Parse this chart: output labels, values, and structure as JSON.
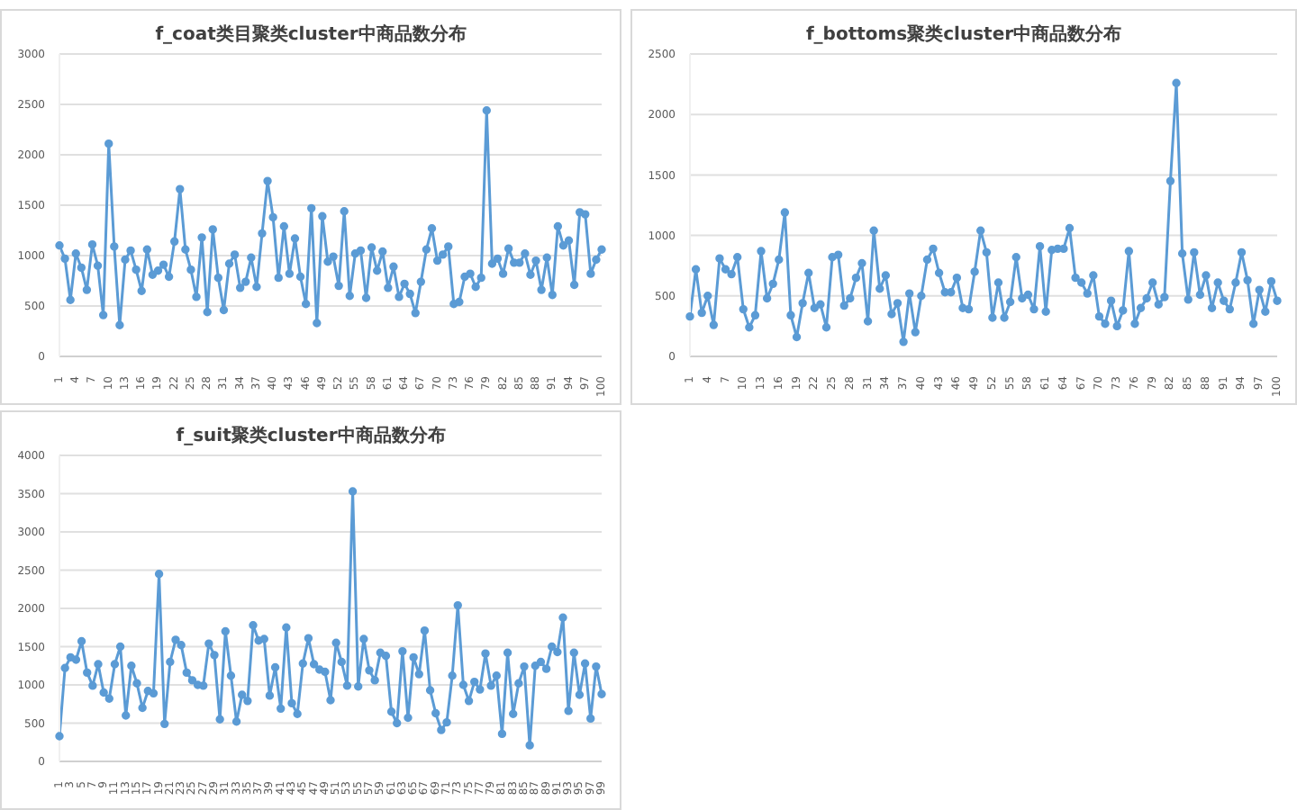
{
  "chart_data": [
    {
      "type": "line",
      "title": "f_coat类目聚类cluster中商品数分布",
      "categories": [
        "1",
        null,
        null,
        "4",
        null,
        null,
        "7",
        null,
        null,
        "10",
        null,
        null,
        "13",
        null,
        null,
        "16",
        null,
        null,
        "19",
        null,
        null,
        "22",
        null,
        null,
        "25",
        null,
        null,
        "28",
        null,
        null,
        "31",
        null,
        null,
        "34",
        null,
        null,
        "37",
        null,
        null,
        "40",
        null,
        null,
        "43",
        null,
        null,
        "46",
        null,
        null,
        "49",
        null,
        null,
        "52",
        null,
        null,
        "55",
        null,
        null,
        "58",
        null,
        null,
        "61",
        null,
        null,
        "64",
        null,
        null,
        "67",
        null,
        null,
        "70",
        null,
        null,
        "73",
        null,
        null,
        "76",
        null,
        null,
        "79",
        null,
        null,
        "82",
        null,
        null,
        "85",
        null,
        null,
        "88",
        null,
        null,
        "91",
        null,
        null,
        "94",
        null,
        null,
        "97",
        null,
        null,
        "100"
      ],
      "series": [
        {
          "color": "#5b9bd5",
          "values": [
            1100,
            970,
            560,
            1020,
            880,
            660,
            1110,
            900,
            410,
            2110,
            1090,
            310,
            960,
            1050,
            860,
            650,
            1060,
            810,
            850,
            910,
            790,
            1140,
            1660,
            1060,
            860,
            590,
            1180,
            440,
            1260,
            780,
            460,
            920,
            1010,
            680,
            740,
            980,
            690,
            1220,
            1740,
            1380,
            780,
            1290,
            820,
            1170,
            790,
            520,
            1470,
            330,
            1390,
            940,
            990,
            700,
            1440,
            600,
            1020,
            1050,
            580,
            1080,
            850,
            1040,
            680,
            890,
            590,
            720,
            620,
            430,
            740,
            1060,
            1270,
            950,
            1010,
            1090,
            520,
            540,
            790,
            820,
            690,
            780,
            2440,
            920,
            970,
            820,
            1070,
            930,
            930,
            1020,
            810,
            950,
            660,
            980,
            610,
            1290,
            1100,
            1150,
            710,
            1430,
            1410,
            820,
            960,
            1060
          ]
        }
      ],
      "ylim": [
        0,
        3000
      ],
      "yticks": [
        0,
        500,
        1000,
        1500,
        2000,
        2500,
        3000
      ],
      "grid": "y",
      "marker": "circle"
    },
    {
      "type": "line",
      "title": "f_bottoms聚类cluster中商品数分布",
      "categories": [
        "1",
        null,
        null,
        "4",
        null,
        null,
        "7",
        null,
        null,
        "10",
        null,
        null,
        "13",
        null,
        null,
        "16",
        null,
        null,
        "19",
        null,
        null,
        "22",
        null,
        null,
        "25",
        null,
        null,
        "28",
        null,
        null,
        "31",
        null,
        null,
        "34",
        null,
        null,
        "37",
        null,
        null,
        "40",
        null,
        null,
        "43",
        null,
        null,
        "46",
        null,
        null,
        "49",
        null,
        null,
        "52",
        null,
        null,
        "55",
        null,
        null,
        "58",
        null,
        null,
        "61",
        null,
        null,
        "64",
        null,
        null,
        "67",
        null,
        null,
        "70",
        null,
        null,
        "73",
        null,
        null,
        "76",
        null,
        null,
        "79",
        null,
        null,
        "82",
        null,
        null,
        "85",
        null,
        null,
        "88",
        null,
        null,
        "91",
        null,
        null,
        "94",
        null,
        null,
        "97",
        null,
        null,
        "100"
      ],
      "series": [
        {
          "color": "#5b9bd5",
          "values": [
            330,
            720,
            360,
            500,
            260,
            810,
            720,
            680,
            820,
            390,
            240,
            340,
            870,
            480,
            600,
            800,
            1190,
            340,
            160,
            440,
            690,
            400,
            430,
            240,
            820,
            840,
            420,
            480,
            650,
            770,
            290,
            1040,
            560,
            670,
            350,
            440,
            120,
            520,
            200,
            500,
            800,
            890,
            690,
            530,
            530,
            650,
            400,
            390,
            700,
            1040,
            860,
            320,
            610,
            320,
            450,
            820,
            480,
            510,
            390,
            910,
            370,
            880,
            890,
            890,
            1060,
            650,
            610,
            520,
            670,
            330,
            270,
            460,
            250,
            380,
            870,
            270,
            400,
            480,
            610,
            430,
            490,
            1450,
            2260,
            850,
            470,
            860,
            510,
            670,
            400,
            610,
            460,
            390,
            610,
            860,
            630,
            270,
            550,
            370,
            620,
            460
          ]
        }
      ],
      "ylim": [
        0,
        2500
      ],
      "yticks": [
        0,
        500,
        1000,
        1500,
        2000,
        2500
      ],
      "grid": "y",
      "marker": "circle"
    },
    {
      "type": "line",
      "title": "f_suit聚类cluster中商品数分布",
      "categories": [
        "1",
        null,
        "3",
        null,
        "5",
        null,
        "7",
        null,
        "9",
        null,
        "11",
        null,
        "13",
        null,
        "15",
        null,
        "17",
        null,
        "19",
        null,
        "21",
        null,
        "23",
        null,
        "25",
        null,
        "27",
        null,
        "29",
        null,
        "31",
        null,
        "33",
        null,
        "35",
        null,
        "37",
        null,
        "39",
        null,
        "41",
        null,
        "43",
        null,
        "45",
        null,
        "47",
        null,
        "49",
        null,
        "51",
        null,
        "53",
        null,
        "55",
        null,
        "57",
        null,
        "59",
        null,
        "61",
        null,
        "63",
        null,
        "65",
        null,
        "67",
        null,
        "69",
        null,
        "71",
        null,
        "73",
        null,
        "75",
        null,
        "77",
        null,
        "79",
        null,
        "81",
        null,
        "83",
        null,
        "85",
        null,
        "87",
        null,
        "89",
        null,
        "91",
        null,
        "93",
        null,
        "95",
        null,
        "97",
        null,
        "99"
      ],
      "series": [
        {
          "color": "#5b9bd5",
          "values": [
            330,
            1220,
            1360,
            1330,
            1570,
            1160,
            990,
            1270,
            900,
            820,
            1270,
            1500,
            600,
            1250,
            1020,
            700,
            920,
            890,
            2450,
            490,
            1300,
            1590,
            1520,
            1160,
            1060,
            1000,
            990,
            1540,
            1390,
            550,
            1700,
            1120,
            520,
            870,
            790,
            1780,
            1580,
            1600,
            860,
            1230,
            690,
            1750,
            760,
            620,
            1280,
            1610,
            1270,
            1200,
            1170,
            800,
            1550,
            1300,
            990,
            3530,
            980,
            1600,
            1190,
            1060,
            1420,
            1380,
            650,
            500,
            1440,
            570,
            1360,
            1140,
            1710,
            930,
            630,
            410,
            510,
            1120,
            2040,
            1000,
            790,
            1040,
            940,
            1410,
            990,
            1120,
            360,
            1420,
            620,
            1020,
            1240,
            210,
            1250,
            1300,
            1210,
            1500,
            1430,
            1880,
            660,
            1420,
            870,
            1280,
            560,
            1240,
            880
          ]
        }
      ],
      "ylim": [
        0,
        4000
      ],
      "yticks": [
        0,
        500,
        1000,
        1500,
        2000,
        2500,
        3000,
        3500,
        4000
      ],
      "grid": "y",
      "marker": "circle"
    }
  ]
}
